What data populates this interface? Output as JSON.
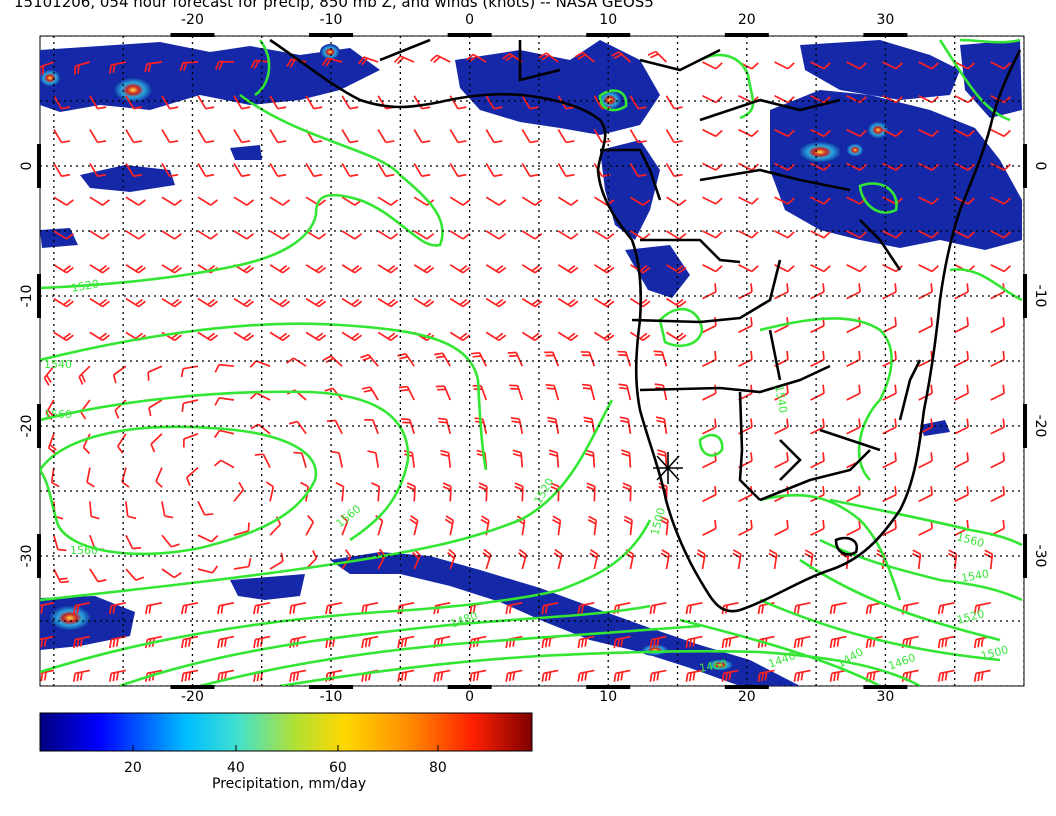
{
  "title": "15101206, 054 hour forecast for precip, 850 mb Z, and winds (knots) -- NASA GEOS5",
  "axes": {
    "lon_ticks": [
      "-20",
      "-10",
      "0",
      "10",
      "20",
      "30"
    ],
    "lat_ticks": [
      "0",
      "-10",
      "-20",
      "-30"
    ],
    "lon_range": [
      -31,
      40
    ],
    "lat_range": [
      -40,
      10
    ]
  },
  "contours": {
    "color": "#33e633",
    "labels": [
      "1520",
      "1540",
      "1560",
      "1560",
      "1560",
      "1520",
      "1500",
      "1480",
      "1460",
      "1440",
      "1440",
      "1460",
      "1500",
      "1520",
      "1540",
      "1560",
      "1540"
    ]
  },
  "winds": {
    "color": "#ff2020",
    "units": "knots"
  },
  "colorbar": {
    "label": "Precipitation, mm/day",
    "ticks": [
      "20",
      "40",
      "60",
      "80"
    ],
    "range": [
      0,
      100
    ],
    "colors": [
      "#00007f",
      "#0000ff",
      "#00bfff",
      "#40e0d0",
      "#b3e033",
      "#ffd700",
      "#ff8c00",
      "#ff2000",
      "#7f0000"
    ]
  },
  "marker": {
    "symbol": "asterisk"
  }
}
